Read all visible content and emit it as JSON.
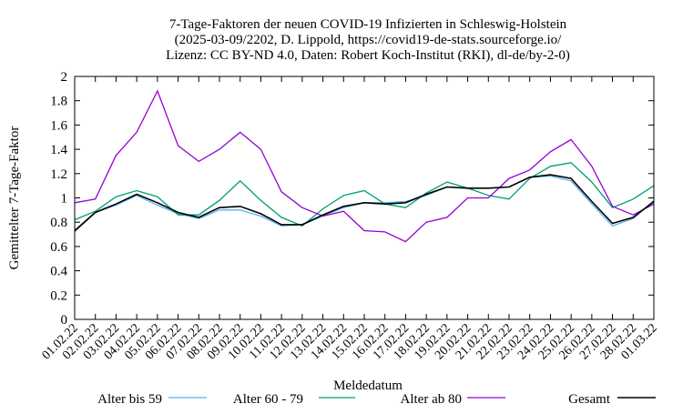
{
  "chart_data": {
    "type": "line",
    "title_lines": [
      "7-Tage-Faktoren der neuen COVID-19 Infizierten in Schleswig-Holstein",
      "(2025-03-09/2202, D. Lippold, https://covid19-de-stats.sourceforge.io/",
      "Lizenz: CC BY-ND 4.0, Daten: Robert Koch-Institut (RKI), dl-de/by-2-0)"
    ],
    "xlabel": "Meldedatum",
    "ylabel": "Gemittelter 7-Tage-Faktor",
    "ylim": [
      0,
      2
    ],
    "yticks": [
      "0",
      "0.2",
      "0.4",
      "0.6",
      "0.8",
      "1",
      "1.2",
      "1.4",
      "1.6",
      "1.8",
      "2"
    ],
    "categories": [
      "01.02.22",
      "02.02.22",
      "03.02.22",
      "04.02.22",
      "05.02.22",
      "06.02.22",
      "07.02.22",
      "08.02.22",
      "09.02.22",
      "10.02.22",
      "11.02.22",
      "12.02.22",
      "13.02.22",
      "14.02.22",
      "15.02.22",
      "16.02.22",
      "17.02.22",
      "18.02.22",
      "19.02.22",
      "20.02.22",
      "21.02.22",
      "22.02.22",
      "23.02.22",
      "24.02.22",
      "25.02.22",
      "26.02.22",
      "27.02.22",
      "28.02.22",
      "01.03.22"
    ],
    "grid": false,
    "legend_position": "bottom",
    "series": [
      {
        "name": "Alter bis 59",
        "color": "#56b4e9",
        "values": [
          0.72,
          0.88,
          0.94,
          1.02,
          0.94,
          0.87,
          0.83,
          0.9,
          0.9,
          0.85,
          0.77,
          0.78,
          0.85,
          0.92,
          0.96,
          0.96,
          0.97,
          1.02,
          1.09,
          1.08,
          1.08,
          1.09,
          1.17,
          1.18,
          1.14,
          0.95,
          0.77,
          0.83,
          0.98
        ]
      },
      {
        "name": "Alter 60 - 79",
        "color": "#009e73",
        "values": [
          0.82,
          0.89,
          1.01,
          1.06,
          1.01,
          0.86,
          0.86,
          0.98,
          1.14,
          0.98,
          0.84,
          0.77,
          0.91,
          1.02,
          1.06,
          0.95,
          0.92,
          1.04,
          1.13,
          1.08,
          1.02,
          0.99,
          1.16,
          1.26,
          1.29,
          1.13,
          0.92,
          0.99,
          1.1
        ]
      },
      {
        "name": "Alter ab 80",
        "color": "#9400d3",
        "values": [
          0.96,
          0.99,
          1.35,
          1.54,
          1.88,
          1.43,
          1.3,
          1.4,
          1.54,
          1.4,
          1.05,
          0.92,
          0.85,
          0.89,
          0.73,
          0.72,
          0.64,
          0.8,
          0.84,
          1.0,
          1.0,
          1.16,
          1.23,
          1.38,
          1.48,
          1.26,
          0.93,
          0.86,
          0.95
        ]
      },
      {
        "name": "Gesamt",
        "color": "#000000",
        "values": [
          0.73,
          0.88,
          0.95,
          1.03,
          0.96,
          0.88,
          0.84,
          0.92,
          0.93,
          0.87,
          0.78,
          0.78,
          0.86,
          0.93,
          0.96,
          0.95,
          0.96,
          1.03,
          1.09,
          1.08,
          1.08,
          1.09,
          1.17,
          1.19,
          1.16,
          0.97,
          0.79,
          0.84,
          0.97
        ]
      }
    ]
  }
}
